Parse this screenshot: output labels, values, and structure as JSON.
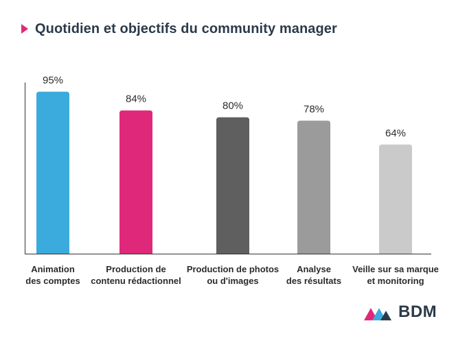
{
  "title": "Quotidien et objectifs du community manager",
  "logo_text": "BDM",
  "chart_data": {
    "type": "bar",
    "categories": [
      [
        "Animation",
        "des comptes"
      ],
      [
        "Production de",
        "contenu rédactionnel"
      ],
      [
        "Production de photos",
        "ou d'images"
      ],
      [
        "Analyse",
        "des résultats"
      ],
      [
        "Veille sur sa marque",
        "et monitoring"
      ]
    ],
    "values": [
      95,
      84,
      80,
      78,
      64
    ],
    "value_labels": [
      "95%",
      "84%",
      "80%",
      "78%",
      "64%"
    ],
    "colors": [
      "#3aabdc",
      "#e0287a",
      "#5f5f5f",
      "#9b9b9b",
      "#cacaca"
    ],
    "ylim": [
      0,
      100
    ],
    "grid": false,
    "legend": "none"
  }
}
